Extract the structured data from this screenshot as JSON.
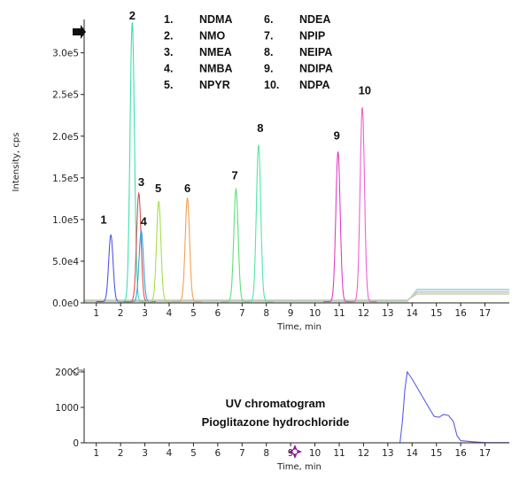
{
  "chart_data": [
    {
      "type": "line",
      "xlabel": "Time, min",
      "ylabel": "Intensity, cps",
      "xlim": [
        0.5,
        18
      ],
      "ylim": [
        0,
        340000
      ],
      "x_ticks": [
        1,
        2,
        3,
        4,
        5,
        6,
        7,
        8,
        9,
        10,
        11,
        12,
        13,
        14,
        15,
        16,
        17
      ],
      "y_ticks": [
        0,
        50000,
        100000,
        150000,
        200000,
        250000,
        300000
      ],
      "y_tick_labels": [
        "0.0e0",
        "5.0e4",
        "1.0e5",
        "1.5e5",
        "2.0e5",
        "2.5e5",
        "3.0e5"
      ],
      "legend": [
        {
          "num": "1.",
          "name": "NDMA"
        },
        {
          "num": "2.",
          "name": "NMO"
        },
        {
          "num": "3.",
          "name": "NMEA"
        },
        {
          "num": "4.",
          "name": "NMBA"
        },
        {
          "num": "5.",
          "name": "NPYR"
        },
        {
          "num": "6.",
          "name": "NDEA"
        },
        {
          "num": "7.",
          "name": "NPIP"
        },
        {
          "num": "8.",
          "name": "NEIPA"
        },
        {
          "num": "9.",
          "name": "NDIPA"
        },
        {
          "num": "10.",
          "name": "NDPA"
        }
      ],
      "legend_placement": "top-center",
      "peaks": [
        {
          "label": "1",
          "time": 1.6,
          "height": 80000,
          "color": "#4f56e8"
        },
        {
          "label": "2",
          "time": 2.48,
          "height": 335000,
          "color": "#3de0b0"
        },
        {
          "label": "3",
          "time": 2.75,
          "height": 130000,
          "color": "#d9534f"
        },
        {
          "label": "4",
          "time": 2.85,
          "height": 85000,
          "color": "#3aa0e0"
        },
        {
          "label": "5",
          "time": 3.57,
          "height": 120000,
          "color": "#a4e04a"
        },
        {
          "label": "6",
          "time": 4.75,
          "height": 124000,
          "color": "#f5a050"
        },
        {
          "label": "7",
          "time": 6.75,
          "height": 135000,
          "color": "#5ee07c"
        },
        {
          "label": "8",
          "time": 7.68,
          "height": 188000,
          "color": "#4fe8a8"
        },
        {
          "label": "9",
          "time": 10.95,
          "height": 180000,
          "color": "#e03ec8"
        },
        {
          "label": "10",
          "time": 11.95,
          "height": 233000,
          "color": "#f060d0"
        }
      ],
      "baseline_after_14min": 15000
    },
    {
      "type": "line",
      "xlabel": "Time, min",
      "xlim": [
        0.5,
        18
      ],
      "ylim": [
        0,
        2000
      ],
      "x_ticks": [
        1,
        2,
        3,
        4,
        5,
        6,
        7,
        8,
        9,
        10,
        11,
        12,
        13,
        14,
        15,
        16,
        17
      ],
      "y_ticks": [
        0,
        1000,
        2000
      ],
      "y_tick_labels": [
        "0",
        "1000",
        "2000"
      ],
      "annotation": [
        "UV chromatogram",
        "Pioglitazone hydrochloride"
      ],
      "color": "#5a5ae8",
      "x": [
        0.5,
        13.5,
        13.6,
        13.7,
        13.8,
        14.0,
        14.3,
        14.6,
        14.9,
        15.1,
        15.3,
        15.5,
        15.7,
        15.85,
        16.0,
        16.5,
        17.0,
        18.0
      ],
      "y": [
        0,
        0,
        600,
        1500,
        2000,
        1800,
        1450,
        1100,
        750,
        720,
        800,
        770,
        600,
        200,
        60,
        30,
        5,
        5
      ]
    }
  ]
}
